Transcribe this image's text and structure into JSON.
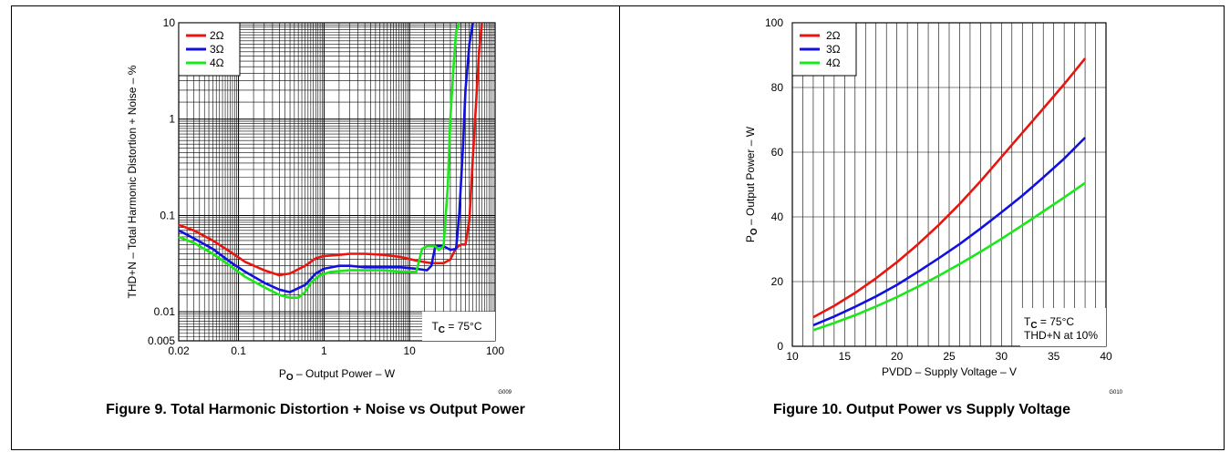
{
  "figures": {
    "left_caption": "Figure 9. Total Harmonic Distortion + Noise vs Output Power",
    "right_caption": "Figure 10. Output Power vs Supply Voltage"
  },
  "chart_data": [
    {
      "type": "line",
      "title": "",
      "xlabel": "P_O – Output Power – W",
      "xlabel_parts": {
        "main": "P",
        "sub": "O",
        "rest": " – Output Power – W"
      },
      "ylabel": "THD+N – Total Harmonic Distortion + Noise – %",
      "x_scale": "log",
      "y_scale": "log",
      "xlim": [
        0.02,
        100
      ],
      "ylim": [
        0.005,
        10
      ],
      "x_ticks": [
        {
          "v": 0.02,
          "label": "0.02"
        },
        {
          "v": 0.1,
          "label": "0.1"
        },
        {
          "v": 1,
          "label": "1"
        },
        {
          "v": 10,
          "label": "10"
        },
        {
          "v": 100,
          "label": "100"
        }
      ],
      "y_ticks": [
        {
          "v": 0.005,
          "label": "0.005"
        },
        {
          "v": 0.01,
          "label": "0.01"
        },
        {
          "v": 0.1,
          "label": "0.1"
        },
        {
          "v": 1,
          "label": "1"
        },
        {
          "v": 10,
          "label": "10"
        }
      ],
      "grid": true,
      "legend_position": "top-left",
      "annotation": {
        "main": "T",
        "sub": "C",
        "rest": " = 75°C"
      },
      "code": "G009",
      "series": [
        {
          "name": "2Ω",
          "color": "#e8150f",
          "x": [
            0.02,
            0.03,
            0.05,
            0.08,
            0.12,
            0.2,
            0.3,
            0.4,
            0.6,
            0.8,
            1,
            1.5,
            2,
            3,
            5,
            8,
            12,
            18,
            25,
            30,
            35,
            40,
            45,
            50,
            55,
            60,
            65,
            70
          ],
          "y": [
            0.08,
            0.07,
            0.055,
            0.042,
            0.033,
            0.027,
            0.024,
            0.025,
            0.03,
            0.036,
            0.038,
            0.039,
            0.04,
            0.04,
            0.039,
            0.037,
            0.034,
            0.032,
            0.032,
            0.035,
            0.046,
            0.05,
            0.05,
            0.09,
            0.4,
            1.5,
            5,
            10
          ]
        },
        {
          "name": "3Ω",
          "color": "#1010e0",
          "x": [
            0.02,
            0.03,
            0.05,
            0.08,
            0.12,
            0.2,
            0.3,
            0.4,
            0.6,
            0.8,
            1,
            1.5,
            2,
            3,
            5,
            8,
            12,
            16,
            18,
            20,
            25,
            30,
            35,
            38,
            42,
            45,
            50,
            55
          ],
          "y": [
            0.07,
            0.058,
            0.045,
            0.033,
            0.026,
            0.02,
            0.017,
            0.016,
            0.019,
            0.025,
            0.028,
            0.03,
            0.03,
            0.029,
            0.029,
            0.029,
            0.028,
            0.027,
            0.03,
            0.048,
            0.048,
            0.044,
            0.045,
            0.1,
            0.5,
            2,
            6,
            10
          ]
        },
        {
          "name": "4Ω",
          "color": "#19e819",
          "x": [
            0.02,
            0.03,
            0.05,
            0.08,
            0.12,
            0.2,
            0.3,
            0.4,
            0.5,
            0.6,
            0.7,
            0.9,
            1.2,
            2,
            3,
            5,
            8,
            12,
            14,
            16,
            20,
            22,
            25,
            28,
            30,
            33,
            35,
            38
          ],
          "y": [
            0.06,
            0.052,
            0.04,
            0.03,
            0.023,
            0.018,
            0.015,
            0.014,
            0.014,
            0.016,
            0.02,
            0.024,
            0.026,
            0.027,
            0.027,
            0.027,
            0.026,
            0.026,
            0.045,
            0.048,
            0.048,
            0.044,
            0.048,
            0.2,
            1,
            4,
            8,
            10
          ]
        }
      ]
    },
    {
      "type": "line",
      "title": "",
      "xlabel": "PVDD – Supply Voltage – V",
      "ylabel": "P_O – Output Power – W",
      "ylabel_parts": {
        "main": "P",
        "sub": "O",
        "rest": " – Output Power – W"
      },
      "xlim": [
        10,
        40
      ],
      "ylim": [
        0,
        100
      ],
      "x_ticks": [
        {
          "v": 10,
          "label": "10"
        },
        {
          "v": 15,
          "label": "15"
        },
        {
          "v": 20,
          "label": "20"
        },
        {
          "v": 25,
          "label": "25"
        },
        {
          "v": 30,
          "label": "30"
        },
        {
          "v": 35,
          "label": "35"
        },
        {
          "v": 40,
          "label": "40"
        }
      ],
      "y_ticks": [
        {
          "v": 0,
          "label": "0"
        },
        {
          "v": 20,
          "label": "20"
        },
        {
          "v": 40,
          "label": "40"
        },
        {
          "v": 60,
          "label": "60"
        },
        {
          "v": 80,
          "label": "80"
        },
        {
          "v": 100,
          "label": "100"
        }
      ],
      "grid": true,
      "legend_position": "top-left",
      "annotation": {
        "main": "T",
        "sub": "C",
        "rest": " = 75°C",
        "line2": "THD+N at 10%"
      },
      "code": "G010",
      "series": [
        {
          "name": "2Ω",
          "color": "#e8150f",
          "x": [
            12,
            14,
            16,
            18,
            20,
            22,
            24,
            26,
            28,
            30,
            32,
            34,
            36,
            38
          ],
          "y": [
            9,
            12.5,
            16.5,
            21,
            26,
            31.5,
            37.5,
            44,
            51,
            58.5,
            66,
            73.5,
            81,
            89
          ]
        },
        {
          "name": "3Ω",
          "color": "#1010e0",
          "x": [
            12,
            14,
            16,
            18,
            20,
            22,
            24,
            26,
            28,
            30,
            32,
            34,
            36,
            38
          ],
          "y": [
            6.5,
            9.2,
            12.2,
            15.4,
            19,
            23,
            27.2,
            31.6,
            36.4,
            41.4,
            46.6,
            52.2,
            58,
            64.5
          ]
        },
        {
          "name": "4Ω",
          "color": "#19e819",
          "x": [
            12,
            14,
            16,
            18,
            20,
            22,
            24,
            26,
            28,
            30,
            32,
            34,
            36,
            38
          ],
          "y": [
            5,
            7.2,
            9.6,
            12.3,
            15.2,
            18.4,
            21.8,
            25.4,
            29.2,
            33.2,
            37.4,
            41.7,
            46,
            50.5
          ]
        }
      ]
    }
  ]
}
